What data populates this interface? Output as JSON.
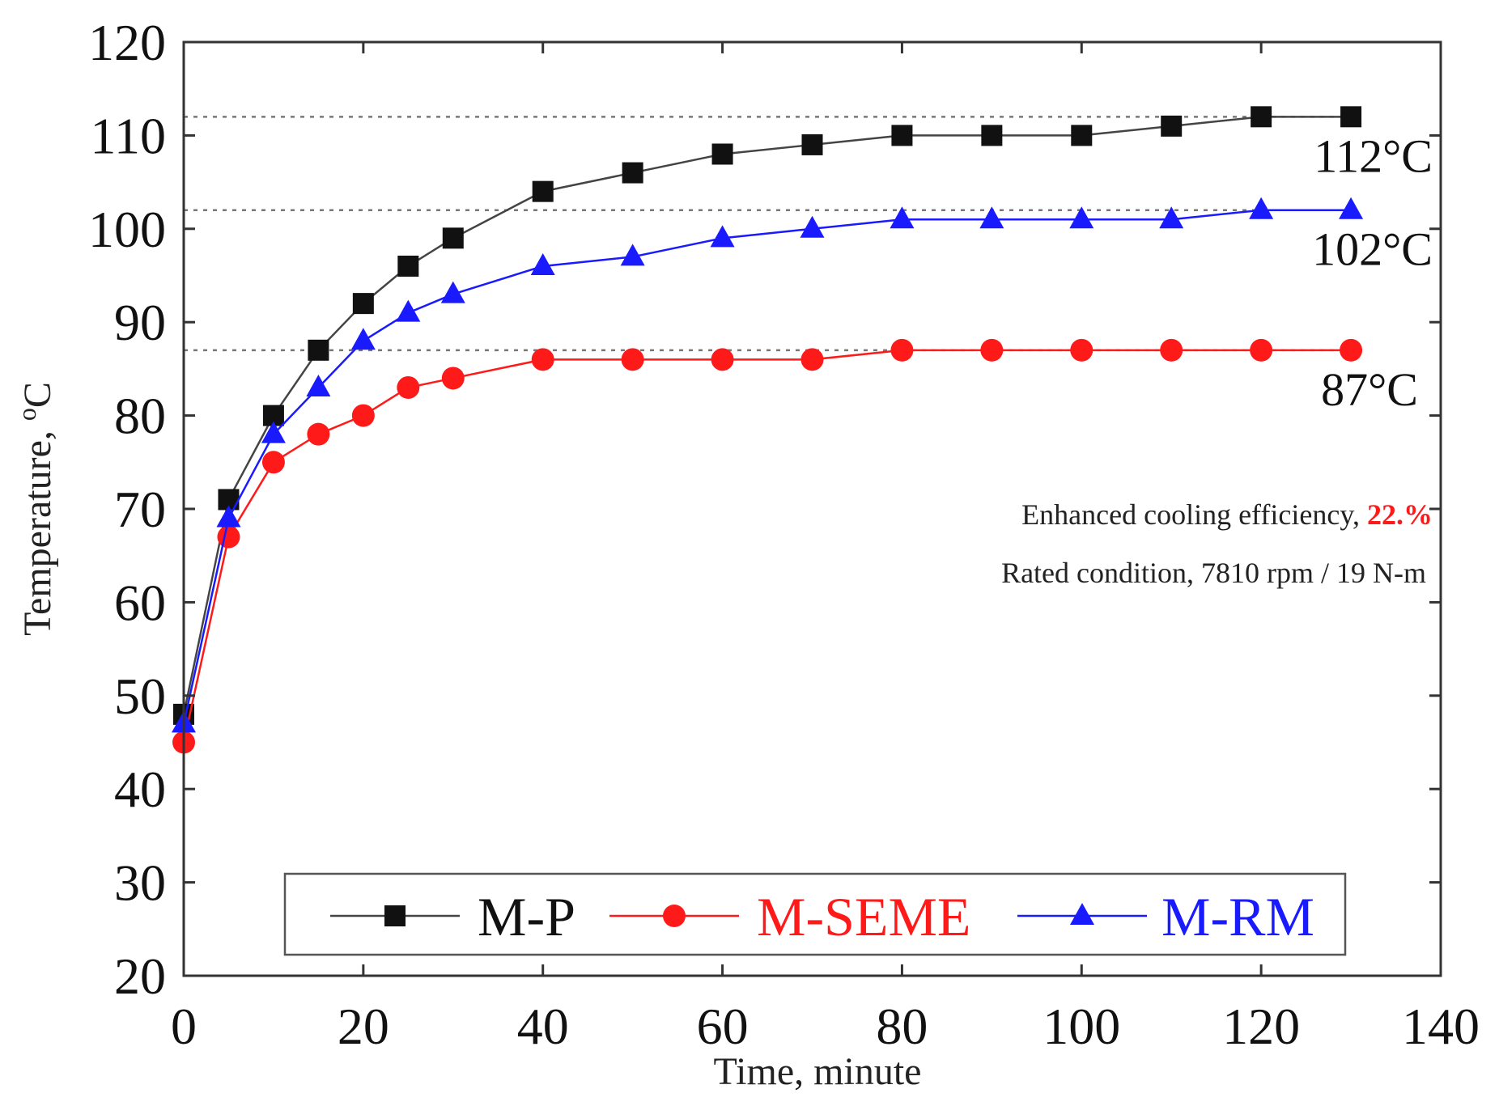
{
  "chart_data": {
    "type": "line",
    "title": "",
    "xlabel": "Time, minute",
    "ylabel_prefix": "Temperature, ",
    "ylabel_sup": "o",
    "ylabel_unit": "C",
    "xlim": [
      0,
      140
    ],
    "ylim": [
      20,
      120
    ],
    "xticks": [
      0,
      20,
      40,
      60,
      80,
      100,
      120,
      140
    ],
    "yticks": [
      20,
      30,
      40,
      50,
      60,
      70,
      80,
      90,
      100,
      110,
      120
    ],
    "x": [
      0,
      5,
      10,
      15,
      20,
      25,
      30,
      40,
      50,
      60,
      70,
      80,
      90,
      100,
      110,
      120,
      130
    ],
    "series": [
      {
        "name": "M-P",
        "color": "#111111",
        "line_color": "#444444",
        "marker": "square",
        "values": [
          48,
          71,
          80,
          87,
          92,
          96,
          99,
          104,
          106,
          108,
          109,
          110,
          110,
          110,
          111,
          112,
          112
        ]
      },
      {
        "name": "M-SEME",
        "color": "#ff1a1a",
        "line_color": "#ff1a1a",
        "marker": "circle",
        "values": [
          45,
          67,
          75,
          78,
          80,
          83,
          84,
          86,
          86,
          86,
          86,
          87,
          87,
          87,
          87,
          87,
          87
        ]
      },
      {
        "name": "M-RM",
        "color": "#1a1aff",
        "line_color": "#1a1aff",
        "marker": "triangle",
        "values": [
          47,
          69,
          78,
          83,
          88,
          91,
          93,
          96,
          97,
          99,
          100,
          101,
          101,
          101,
          101,
          102,
          102
        ]
      }
    ],
    "reference_lines": [
      {
        "y": 112,
        "label": "112°C"
      },
      {
        "y": 102,
        "label": "102°C"
      },
      {
        "y": 87,
        "label": "87°C"
      }
    ],
    "annotations": {
      "efficiency_text": "Enhanced cooling efficiency, ",
      "efficiency_value": "22.%",
      "efficiency_value_color": "#ff1a1a",
      "rated_condition": "Rated condition, 7810 rpm / 19 N-m"
    },
    "legend_position": "bottom",
    "grid": false
  }
}
